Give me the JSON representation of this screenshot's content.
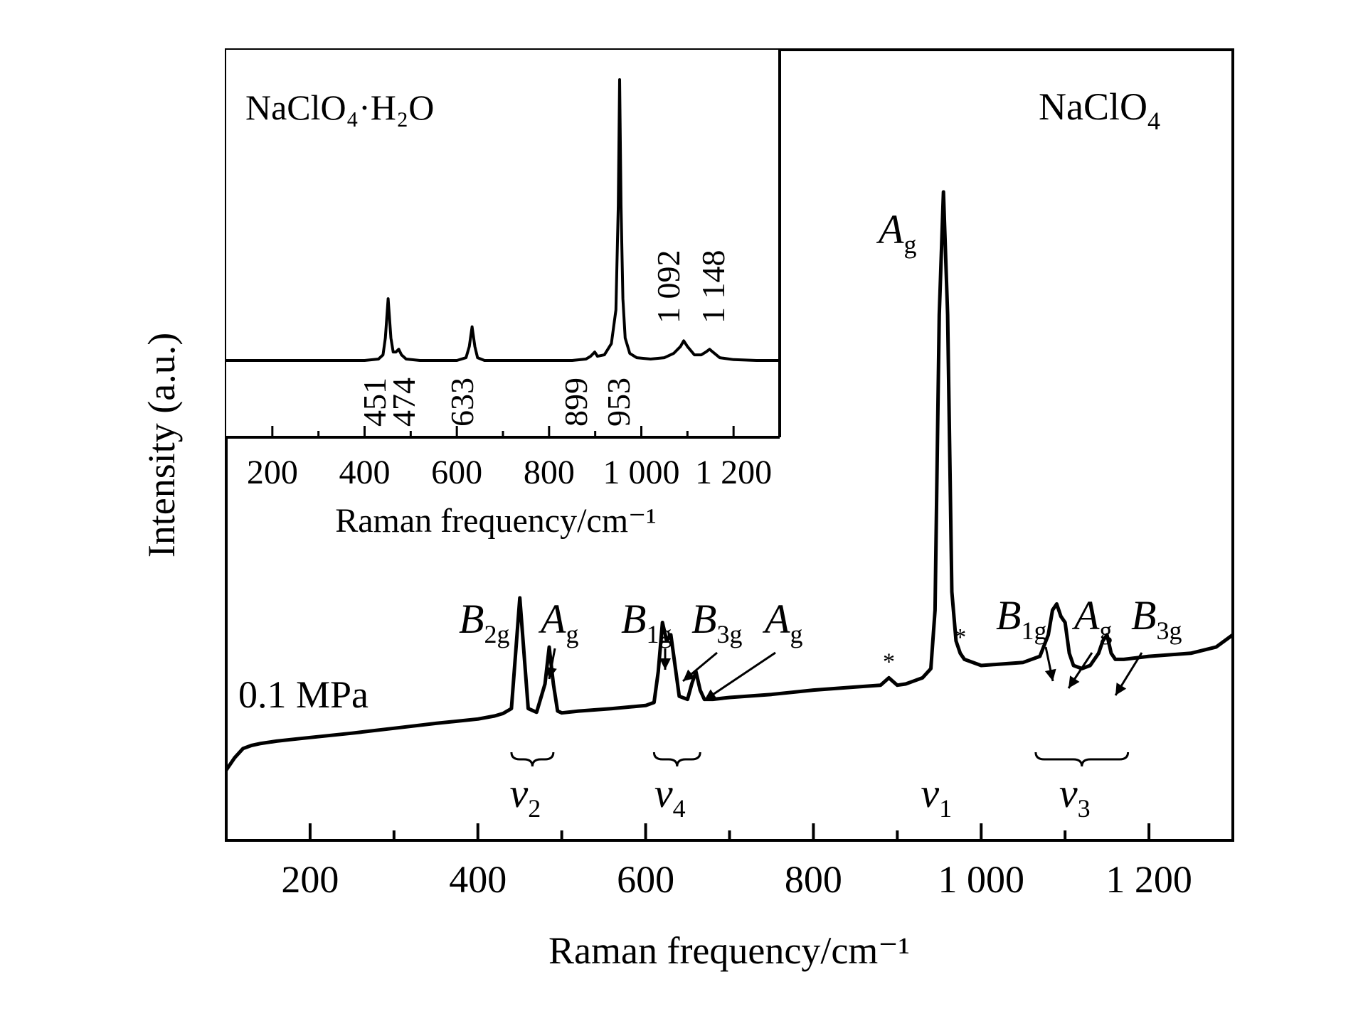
{
  "chart_data": [
    {
      "type": "line",
      "name": "main",
      "title": "",
      "xlabel": "Raman frequency/cm⁻¹",
      "ylabel": "Intensity (a.u.)",
      "xlim": [
        100,
        1300
      ],
      "ylim": [
        0,
        100
      ],
      "x_ticks": [
        200,
        400,
        600,
        800,
        1000,
        1200
      ],
      "x_tick_labels": [
        "200",
        "400",
        "600",
        "800",
        "1 000",
        "1 200"
      ],
      "sample_label": "NaClO",
      "sample_sub": "4",
      "pressure_label": "0.1 MPa",
      "grid": false,
      "legend": "none",
      "series": [
        {
          "x": [
            100,
            110,
            120,
            130,
            140,
            160,
            180,
            200,
            250,
            300,
            350,
            400,
            420,
            430,
            440,
            445,
            450,
            455,
            460,
            470,
            480,
            485,
            490,
            495,
            500,
            520,
            560,
            600,
            610,
            615,
            620,
            625,
            630,
            635,
            640,
            650,
            655,
            660,
            665,
            670,
            680,
            700,
            750,
            800,
            850,
            880,
            890,
            900,
            910,
            920,
            930,
            940,
            945,
            950,
            955,
            960,
            965,
            970,
            975,
            980,
            1000,
            1050,
            1070,
            1080,
            1085,
            1090,
            1095,
            1100,
            1105,
            1110,
            1120,
            1130,
            1140,
            1145,
            1150,
            1155,
            1160,
            1170,
            1200,
            1250,
            1280,
            1300
          ],
          "y": [
            6,
            8,
            9.5,
            10,
            10.3,
            10.7,
            11,
            11.3,
            12,
            12.8,
            13.6,
            14.3,
            14.8,
            15.2,
            16,
            25,
            34,
            25,
            16,
            15.4,
            20,
            26,
            20,
            15.6,
            15.3,
            15.6,
            16,
            16.5,
            17,
            22,
            30,
            27,
            28,
            23,
            18,
            17.5,
            20,
            22,
            19,
            17.5,
            17.5,
            17.8,
            18.3,
            19,
            19.5,
            19.8,
            21,
            19.8,
            20,
            20.5,
            21,
            22.5,
            32,
            80,
            100,
            80,
            35,
            27,
            25,
            24,
            23,
            23.5,
            24.5,
            28,
            32,
            33,
            31,
            30,
            25,
            23,
            22.5,
            23,
            25,
            27,
            28,
            25,
            24,
            24,
            24.5,
            25,
            26,
            28
          ]
        }
      ],
      "annotations": [
        {
          "base": "B",
          "sub": "2g",
          "x": 445
        },
        {
          "base": "A",
          "sub": "g",
          "x": 485
        },
        {
          "base": "B",
          "sub": "1g",
          "x": 620
        },
        {
          "base": "B",
          "sub": "3g",
          "x": 630
        },
        {
          "base": "A",
          "sub": "g",
          "x": 658
        },
        {
          "base": "A",
          "sub": "g",
          "x": 955
        },
        {
          "base": "B",
          "sub": "1g",
          "x": 1085
        },
        {
          "base": "A",
          "sub": "g",
          "x": 1095
        },
        {
          "base": "B",
          "sub": "3g",
          "x": 1150
        }
      ],
      "band_groups": [
        {
          "base": "ν",
          "sub": "2",
          "x_from": 440,
          "x_to": 490
        },
        {
          "base": "ν",
          "sub": "4",
          "x_from": 610,
          "x_to": 665
        },
        {
          "base": "ν",
          "sub": "1",
          "x_from": 955,
          "x_to": 955
        },
        {
          "base": "ν",
          "sub": "3",
          "x_from": 1065,
          "x_to": 1175
        }
      ],
      "impurity_marks": [
        {
          "symbol": "*",
          "x": 890
        },
        {
          "symbol": "*",
          "x": 975
        }
      ]
    },
    {
      "type": "line",
      "name": "inset",
      "title": "",
      "xlabel": "Raman frequency/cm⁻¹",
      "ylabel": "",
      "xlim": [
        100,
        1300
      ],
      "ylim": [
        0,
        100
      ],
      "x_ticks": [
        200,
        400,
        600,
        800,
        1000,
        1200
      ],
      "x_tick_labels": [
        "200",
        "400",
        "600",
        "800",
        "1 000",
        "1 200"
      ],
      "sample_label": "NaClO₄·H₂O",
      "grid": false,
      "legend": "none",
      "series": [
        {
          "x": [
            100,
            200,
            300,
            400,
            430,
            440,
            445,
            451,
            457,
            462,
            468,
            474,
            480,
            490,
            520,
            560,
            600,
            620,
            627,
            633,
            639,
            645,
            660,
            700,
            750,
            800,
            850,
            880,
            890,
            899,
            905,
            920,
            935,
            945,
            950,
            953,
            956,
            960,
            965,
            975,
            990,
            1020,
            1050,
            1070,
            1085,
            1092,
            1100,
            1115,
            1130,
            1140,
            1148,
            1155,
            1170,
            1200,
            1250,
            1300
          ],
          "y": [
            0,
            0,
            0,
            0,
            0.5,
            2,
            8,
            22,
            8,
            3,
            3,
            4,
            2,
            0.5,
            0,
            0,
            0,
            1,
            5,
            12,
            5,
            1,
            0,
            0,
            0,
            0,
            0,
            0.5,
            1.5,
            3,
            1.5,
            2,
            6,
            18,
            55,
            100,
            55,
            22,
            8,
            2.5,
            1,
            0.5,
            1,
            2.5,
            5,
            7,
            5,
            2,
            2,
            3,
            4,
            3,
            1,
            0.3,
            0,
            0
          ]
        }
      ],
      "peak_labels": [
        "451",
        "474",
        "633",
        "899",
        "953",
        "1 092",
        "1 148"
      ]
    }
  ]
}
